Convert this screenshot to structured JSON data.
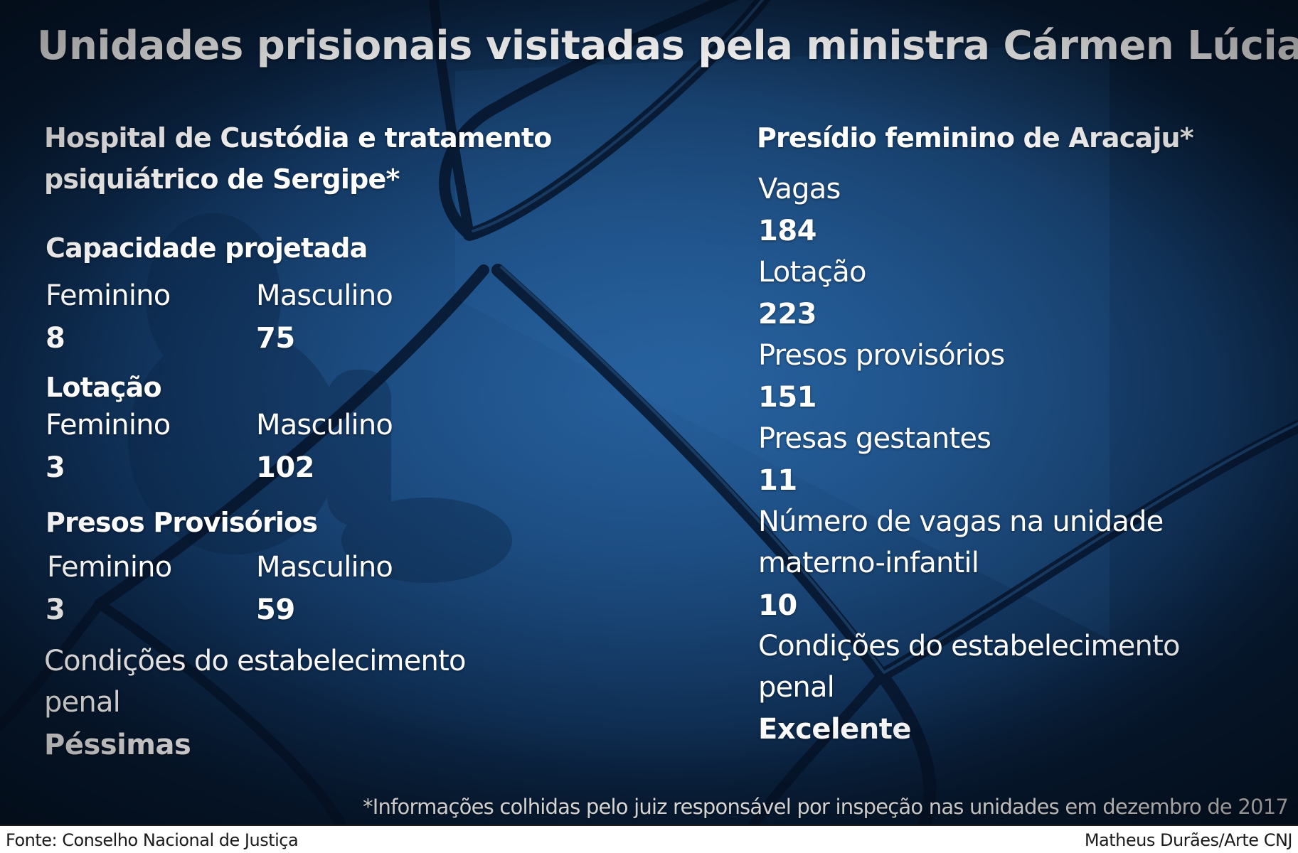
{
  "title": "Unidades prisionais visitadas pela ministra Cármen Lúcia",
  "left": {
    "heading_line1": "Hospital de Custódia e tratamento",
    "heading_line2": "psiquiátrico de Sergipe*",
    "capacidade": {
      "label": "Capacidade projetada",
      "feminino_label": "Feminino",
      "masculino_label": "Masculino",
      "feminino_value": "8",
      "masculino_value": "75"
    },
    "lotacao": {
      "label": "Lotação",
      "feminino_label": "Feminino",
      "masculino_label": "Masculino",
      "feminino_value": "3",
      "masculino_value": "102"
    },
    "provisorios": {
      "label": "Presos Provisórios",
      "feminino_label": "Feminino",
      "masculino_label": "Masculino",
      "feminino_value": "3",
      "masculino_value": "59"
    },
    "condicoes_line1": "Condições do estabelecimento",
    "condicoes_line2": "penal",
    "condicoes_value": "Péssimas"
  },
  "right": {
    "heading": "Presídio feminino de Aracaju*",
    "vagas_label": "Vagas",
    "vagas_value": "184",
    "lotacao_label": "Lotação",
    "lotacao_value": "223",
    "provisorios_label": "Presos provisórios",
    "provisorios_value": "151",
    "gestantes_label": "Presas gestantes",
    "gestantes_value": "11",
    "materno_line1": "Número de vagas na unidade",
    "materno_line2": "materno-infantil",
    "materno_value": "10",
    "condicoes_line1": "Condições do estabelecimento",
    "condicoes_line2": "penal",
    "condicoes_value": "Excelente"
  },
  "footnote": "*Informações colhidas pelo juiz responsável por inspeção nas unidades em dezembro de 2017",
  "footer": {
    "source": "Fonte: Conselho Nacional de Justiça",
    "credit": "Matheus Durães/Arte CNJ"
  },
  "colors": {
    "background": "#163f6f",
    "text": "#ffffff",
    "footer_text": "#1b1b1b"
  }
}
